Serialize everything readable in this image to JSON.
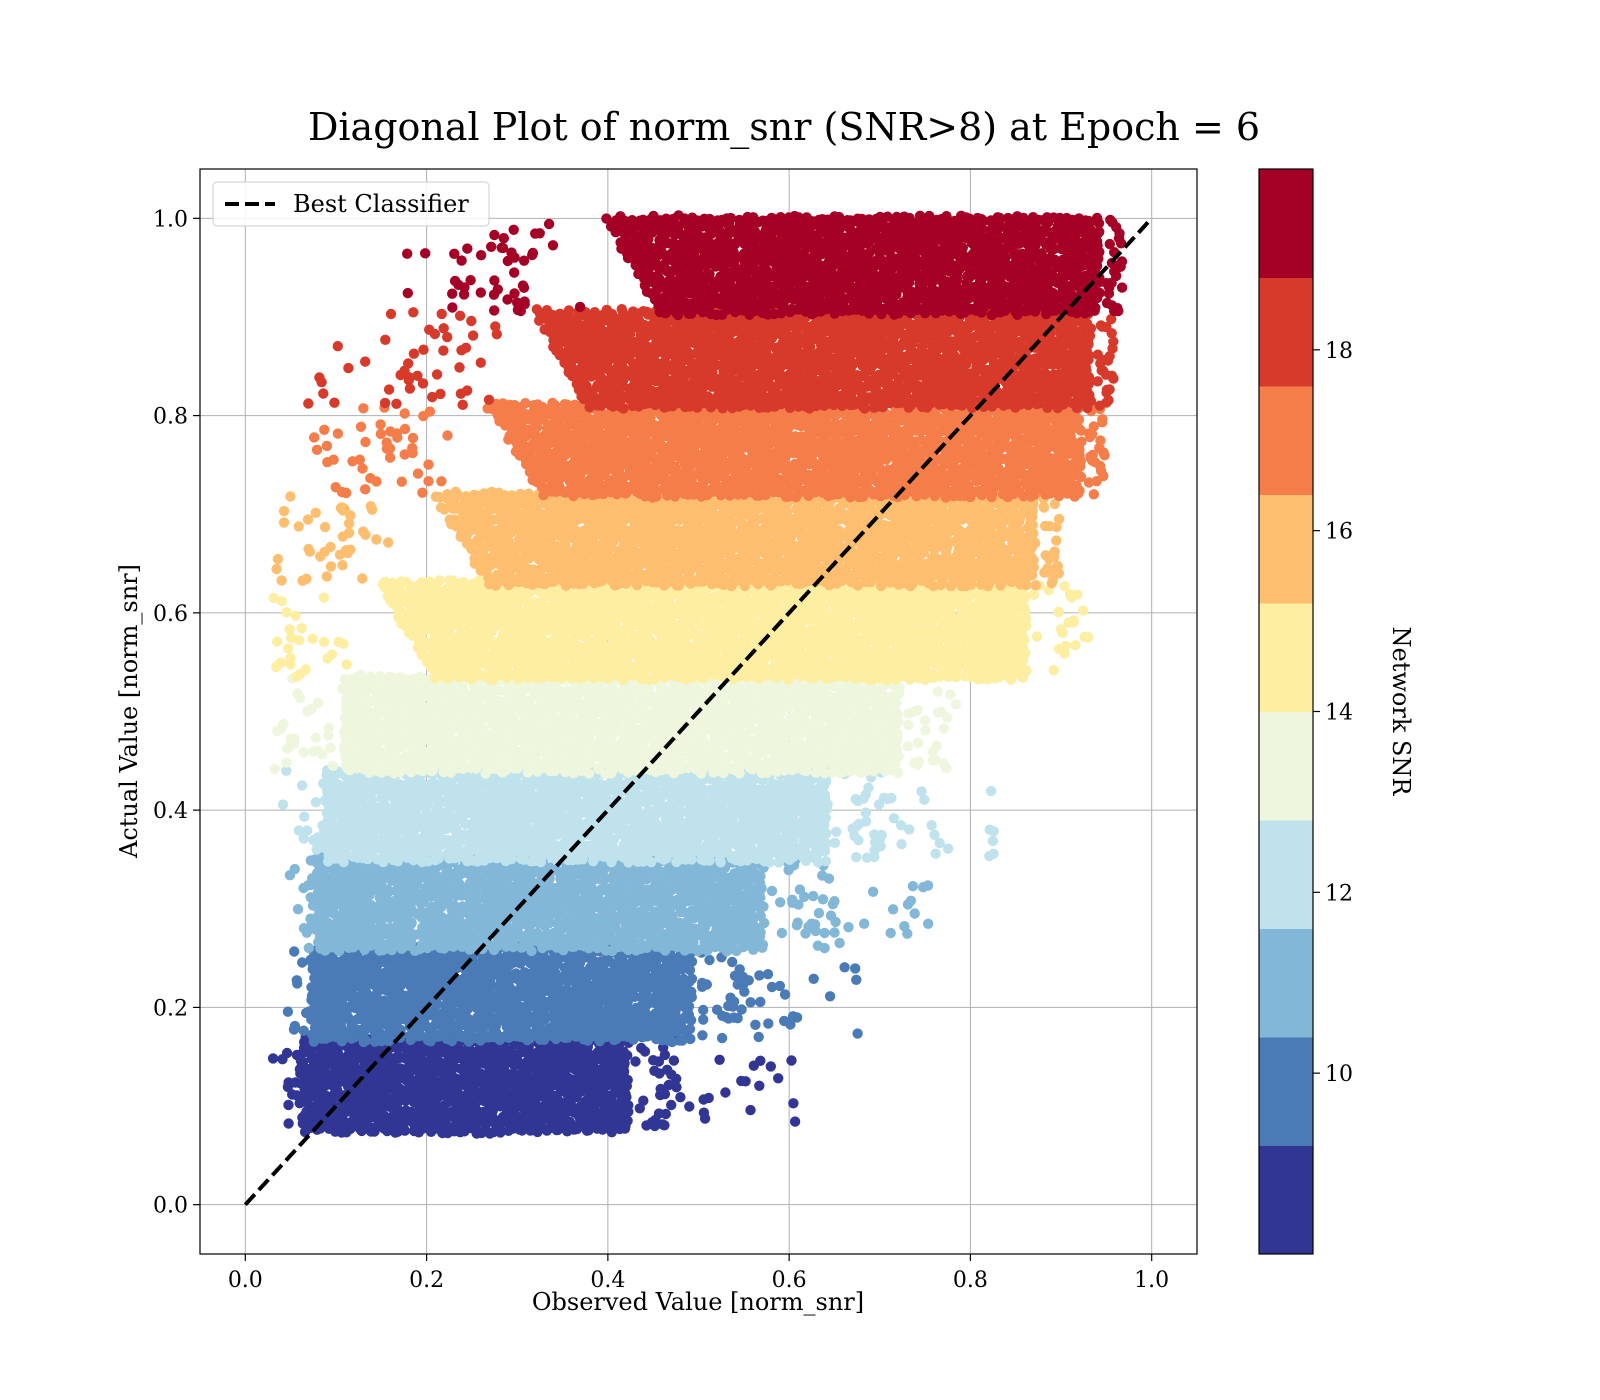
{
  "chart_data": {
    "type": "scatter",
    "title": "Diagonal Plot of norm_snr (SNR>8) at Epoch = 6",
    "xlabel": "Observed Value [norm_snr]",
    "ylabel": "Actual Value [norm_snr]",
    "xlim": [
      -0.05,
      1.05
    ],
    "ylim": [
      -0.05,
      1.05
    ],
    "x_ticks": [
      0.0,
      0.2,
      0.4,
      0.6,
      0.8,
      1.0
    ],
    "y_ticks": [
      0.0,
      0.2,
      0.4,
      0.6,
      0.8,
      1.0
    ],
    "x_tick_labels": [
      "0.0",
      "0.2",
      "0.4",
      "0.6",
      "0.8",
      "1.0"
    ],
    "y_tick_labels": [
      "0.0",
      "0.2",
      "0.4",
      "0.6",
      "0.8",
      "1.0"
    ],
    "grid": true,
    "legend": {
      "placement": "upper-left",
      "entries": [
        {
          "label": "Best Classifier",
          "style": "dashed",
          "color": "#000000"
        }
      ]
    },
    "reference_line": {
      "name": "Best Classifier",
      "x": [
        0.0,
        1.0
      ],
      "y": [
        0.0,
        1.0
      ],
      "color": "#000000",
      "style": "dashed"
    },
    "colorbar": {
      "label": "Network SNR",
      "range": [
        8,
        20
      ],
      "tick_values": [
        10,
        12,
        14,
        16,
        18
      ],
      "tick_labels": [
        "10",
        "12",
        "14",
        "16",
        "18"
      ],
      "bands": [
        {
          "snr": [
            8,
            9.2
          ],
          "y": [
            0.075,
            0.168
          ],
          "x": [
            0.045,
            0.45
          ],
          "color": "#313695"
        },
        {
          "snr": [
            9.2,
            10.4
          ],
          "y": [
            0.168,
            0.26
          ],
          "x": [
            0.055,
            0.52
          ],
          "color": "#4a7bb7"
        },
        {
          "snr": [
            10.4,
            11.6
          ],
          "y": [
            0.26,
            0.35
          ],
          "x": [
            0.06,
            0.6
          ],
          "color": "#83b7d7"
        },
        {
          "snr": [
            11.6,
            12.8
          ],
          "y": [
            0.35,
            0.44
          ],
          "x": [
            0.07,
            0.67
          ],
          "color": "#bfe2ed"
        },
        {
          "snr": [
            12.8,
            14.0
          ],
          "y": [
            0.44,
            0.535
          ],
          "x": [
            0.09,
            0.75
          ],
          "color": "#eef7de"
        },
        {
          "snr": [
            14.0,
            15.2
          ],
          "y": [
            0.535,
            0.63
          ],
          "x": [
            0.13,
            0.89
          ],
          "color": "#feeea1"
        },
        {
          "snr": [
            15.2,
            16.4
          ],
          "y": [
            0.63,
            0.72
          ],
          "x": [
            0.19,
            0.9
          ],
          "color": "#fdbe70"
        },
        {
          "snr": [
            16.4,
            17.6
          ],
          "y": [
            0.72,
            0.81
          ],
          "x": [
            0.25,
            0.95
          ],
          "color": "#f57d4a"
        },
        {
          "snr": [
            17.6,
            18.8
          ],
          "y": [
            0.81,
            0.905
          ],
          "x": [
            0.3,
            0.96
          ],
          "color": "#d73a2b"
        },
        {
          "snr": [
            18.8,
            20
          ],
          "y": [
            0.905,
            1.0
          ],
          "x": [
            0.38,
            0.97
          ],
          "color": "#a50026"
        }
      ]
    }
  }
}
